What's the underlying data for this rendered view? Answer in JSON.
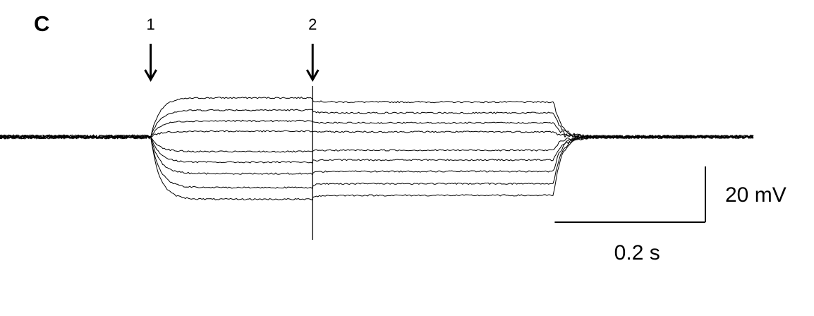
{
  "panel_label": "C",
  "chart_data": {
    "type": "line",
    "title": "",
    "xlabel": "",
    "ylabel": "",
    "x_unit": "s",
    "y_unit": "mV",
    "xlim": [
      0,
      1.0
    ],
    "ylim": [
      -26,
      16
    ],
    "grid": false,
    "legend": "none",
    "line_color": "#000000",
    "baseline_mV": 0,
    "step_on_s": 0.2,
    "step_off_s": 0.735,
    "artifact_s": 0.415,
    "series": [
      {
        "phase1_mV": 14.0,
        "phase2_mV": 12.5
      },
      {
        "phase1_mV": 9.6,
        "phase2_mV": 8.6
      },
      {
        "phase1_mV": 5.7,
        "phase2_mV": 5.0
      },
      {
        "phase1_mV": 2.0,
        "phase2_mV": 1.8
      },
      {
        "phase1_mV": -5.3,
        "phase2_mV": -4.8
      },
      {
        "phase1_mV": -9.1,
        "phase2_mV": -8.3
      },
      {
        "phase1_mV": -13.2,
        "phase2_mV": -12.4
      },
      {
        "phase1_mV": -18.2,
        "phase2_mV": -16.8
      },
      {
        "phase1_mV": -22.4,
        "phase2_mV": -21.0
      }
    ],
    "annotations": [
      {
        "label": "1",
        "x_s": 0.2,
        "type": "down-arrow"
      },
      {
        "label": "2",
        "x_s": 0.415,
        "type": "down-arrow"
      }
    ],
    "scale_bar": {
      "voltage_value": 20,
      "voltage_label": "20 mV",
      "time_value": 0.2,
      "time_label": "0.2 s"
    }
  }
}
